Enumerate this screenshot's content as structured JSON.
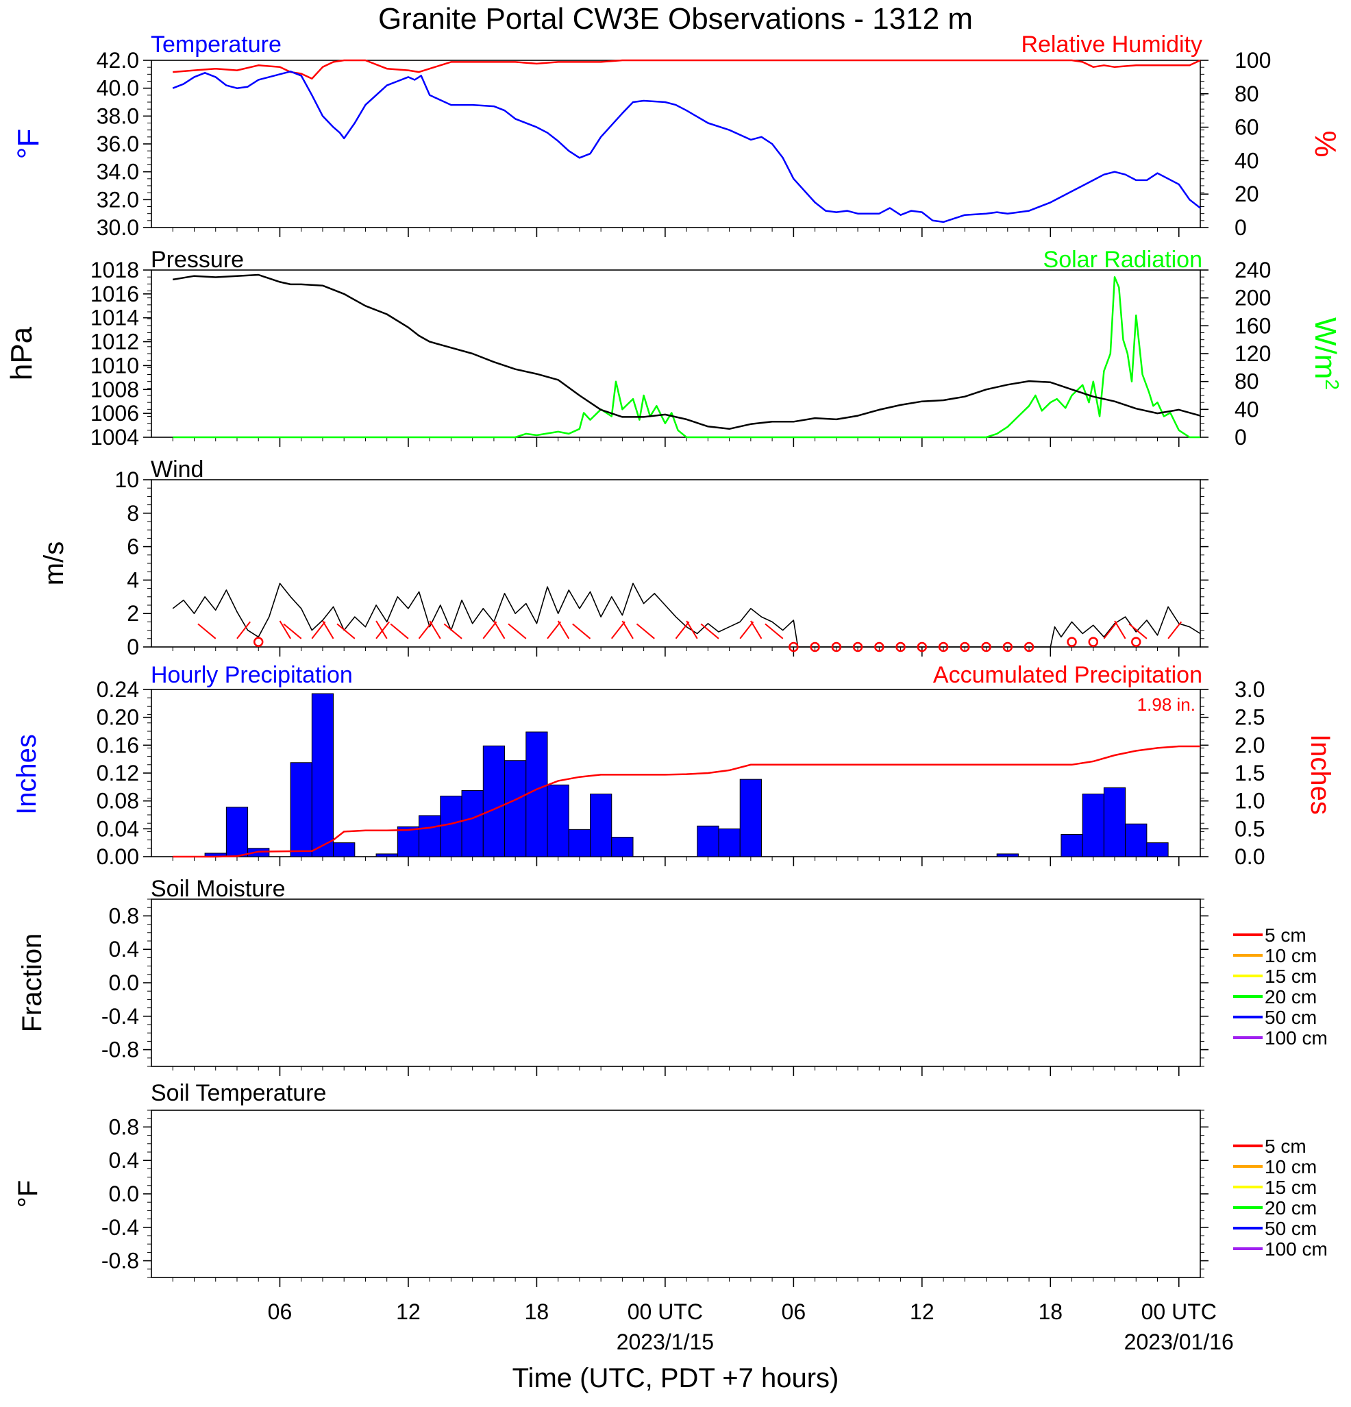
{
  "title": "Granite Portal CW3E Observations - 1312 m",
  "x_axis": {
    "label": "Time (UTC, PDT +7 hours)",
    "ticks": [
      {
        "hour": 5,
        "label": "06"
      },
      {
        "hour": 11,
        "label": "12"
      },
      {
        "hour": 17,
        "label": "18"
      },
      {
        "hour": 23,
        "label": "00 UTC",
        "date": "2023/1/15"
      },
      {
        "hour": 29,
        "label": "06"
      },
      {
        "hour": 35,
        "label": "12"
      },
      {
        "hour": 41,
        "label": "18"
      },
      {
        "hour": 47,
        "label": "00 UTC",
        "date": "2023/01/16"
      }
    ]
  },
  "colors": {
    "temperature": "#0000ff",
    "humidity": "#ff0000",
    "pressure": "#000000",
    "solar": "#00ff00",
    "wind": "#000000",
    "barb": "#ff0000",
    "precip_bar": "#0000ff",
    "accum": "#ff0000"
  },
  "chart_data": [
    {
      "id": "temp",
      "type": "line",
      "title_left": "Temperature",
      "title_right": "Relative Humidity",
      "ylabel_left": "°F",
      "ylabel_right": "%",
      "ylim_left": [
        30,
        42
      ],
      "ylim_right": [
        0,
        100
      ],
      "yticks_left": [
        "30.0",
        "32.0",
        "34.0",
        "36.0",
        "38.0",
        "40.0",
        "42.0"
      ],
      "yticks_right": [
        "0",
        "20",
        "40",
        "60",
        "80",
        "100"
      ],
      "series": [
        {
          "name": "Temperature",
          "axis": "left",
          "color_key": "temperature",
          "x": [
            0,
            0.5,
            1,
            1.5,
            2,
            2.5,
            3,
            3.5,
            4,
            4.5,
            5,
            5.5,
            6,
            6.5,
            7,
            7.5,
            7.8,
            8,
            8.5,
            9,
            9.5,
            10,
            10.5,
            11,
            11.3,
            11.6,
            12,
            13,
            14,
            15,
            15.5,
            16,
            17,
            17.5,
            18,
            18.5,
            19,
            19.5,
            20,
            21,
            21.5,
            22,
            23,
            23.5,
            24,
            25,
            26,
            27,
            27.5,
            28,
            28.5,
            29,
            30,
            30.5,
            31,
            31.5,
            32,
            33,
            33.5,
            34,
            34.5,
            35,
            35.5,
            36,
            37,
            38,
            38.5,
            39,
            40,
            41,
            42,
            42.5,
            43,
            43.5,
            44,
            44.5,
            45,
            45.5,
            46,
            46.5,
            47,
            47.5,
            48
          ],
          "y": [
            40.0,
            40.3,
            40.8,
            41.1,
            40.8,
            40.2,
            40.0,
            40.1,
            40.6,
            40.8,
            41.0,
            41.2,
            40.9,
            39.5,
            38.0,
            37.2,
            36.8,
            36.4,
            37.5,
            38.8,
            39.5,
            40.2,
            40.5,
            40.8,
            40.6,
            40.9,
            39.5,
            38.8,
            38.8,
            38.7,
            38.4,
            37.8,
            37.2,
            36.8,
            36.2,
            35.5,
            35.0,
            35.3,
            36.5,
            38.2,
            39.0,
            39.1,
            39.0,
            38.8,
            38.4,
            37.5,
            37.0,
            36.3,
            36.5,
            36.0,
            35.0,
            33.5,
            31.8,
            31.2,
            31.1,
            31.2,
            31.0,
            31.0,
            31.4,
            30.9,
            31.2,
            31.1,
            30.5,
            30.4,
            30.9,
            31.0,
            31.1,
            31.0,
            31.2,
            31.8,
            32.6,
            33.0,
            33.4,
            33.8,
            34.0,
            33.8,
            33.4,
            33.4,
            33.9,
            33.5,
            33.1,
            32.0,
            31.4
          ]
        },
        {
          "name": "Relative Humidity",
          "axis": "right",
          "color_key": "humidity",
          "x": [
            0,
            1,
            2,
            3,
            4,
            5,
            5.5,
            6,
            6.5,
            7,
            7.5,
            8,
            9,
            10,
            11,
            11.5,
            12,
            12.5,
            13,
            14,
            15,
            16,
            17,
            18,
            19,
            20,
            21,
            22,
            23,
            24,
            25,
            26,
            27,
            28,
            30,
            32,
            34,
            36,
            38,
            40,
            41,
            42,
            42.5,
            43,
            43.5,
            44,
            45,
            46,
            47,
            47.5,
            48
          ],
          "y": [
            93,
            94,
            95,
            94,
            97,
            96,
            93,
            92,
            89,
            96,
            99,
            100,
            100,
            95,
            94,
            93,
            95,
            97,
            99,
            99,
            99,
            99,
            98,
            99,
            99,
            99,
            100,
            100,
            100,
            100,
            100,
            100,
            100,
            100,
            100,
            100,
            100,
            100,
            100,
            100,
            100,
            100,
            99,
            96,
            97,
            96,
            97,
            97,
            97,
            97,
            100
          ]
        }
      ]
    },
    {
      "id": "pressure",
      "type": "line",
      "title_left": "Pressure",
      "title_right": "Solar Radiation",
      "ylabel_left": "hPa",
      "ylabel_right": "W/m2",
      "ylim_left": [
        1004,
        1018
      ],
      "ylim_right": [
        0,
        240
      ],
      "yticks_left": [
        "1004",
        "1006",
        "1008",
        "1010",
        "1012",
        "1014",
        "1016",
        "1018"
      ],
      "yticks_right": [
        "0",
        "40",
        "80",
        "120",
        "160",
        "200",
        "240"
      ],
      "series": [
        {
          "name": "Pressure",
          "axis": "left",
          "color_key": "pressure",
          "x": [
            0,
            1,
            2,
            3,
            4,
            4.5,
            5,
            5.5,
            6,
            7,
            8,
            9,
            10,
            11,
            11.5,
            12,
            13,
            14,
            15,
            16,
            17,
            18,
            19,
            20,
            21,
            22,
            23,
            24,
            25,
            26,
            27,
            28,
            29,
            30,
            31,
            32,
            33,
            34,
            35,
            36,
            37,
            38,
            39,
            40,
            41,
            42,
            43,
            44,
            45,
            46,
            47,
            48
          ],
          "y": [
            1017.2,
            1017.5,
            1017.4,
            1017.5,
            1017.6,
            1017.3,
            1017.0,
            1016.8,
            1016.8,
            1016.7,
            1016.0,
            1015.0,
            1014.3,
            1013.2,
            1012.5,
            1012.0,
            1011.5,
            1011.0,
            1010.3,
            1009.7,
            1009.3,
            1008.8,
            1007.5,
            1006.3,
            1005.7,
            1005.7,
            1005.9,
            1005.5,
            1004.9,
            1004.7,
            1005.1,
            1005.3,
            1005.3,
            1005.6,
            1005.5,
            1005.8,
            1006.3,
            1006.7,
            1007.0,
            1007.1,
            1007.4,
            1008.0,
            1008.4,
            1008.7,
            1008.6,
            1008.0,
            1007.4,
            1007.0,
            1006.4,
            1006.0,
            1006.3,
            1005.8
          ]
        },
        {
          "name": "Solar Radiation",
          "axis": "right",
          "color_key": "solar",
          "x": [
            0,
            16,
            16.5,
            17,
            18,
            18.5,
            19,
            19.2,
            19.5,
            20,
            20.5,
            20.7,
            21,
            21.5,
            21.8,
            22,
            22.3,
            22.6,
            23,
            23.3,
            23.6,
            24,
            26,
            38,
            38.5,
            39,
            39.5,
            40,
            40.3,
            40.6,
            41,
            41.3,
            41.7,
            42,
            42.5,
            42.8,
            43,
            43.3,
            43.5,
            43.8,
            44,
            44.2,
            44.4,
            44.6,
            44.8,
            45,
            45.3,
            45.6,
            45.8,
            46,
            46.3,
            46.6,
            47,
            47.5,
            48
          ],
          "y": [
            0,
            0,
            5,
            3,
            8,
            5,
            12,
            35,
            25,
            40,
            30,
            80,
            40,
            55,
            25,
            60,
            30,
            45,
            20,
            35,
            10,
            0,
            0,
            0,
            5,
            15,
            30,
            45,
            60,
            38,
            50,
            55,
            42,
            60,
            75,
            50,
            80,
            30,
            95,
            120,
            230,
            215,
            140,
            120,
            80,
            175,
            90,
            65,
            45,
            50,
            30,
            35,
            10,
            0,
            0
          ]
        }
      ]
    },
    {
      "id": "wind",
      "type": "line",
      "title_left": "Wind",
      "ylabel_left": "m/s",
      "ylim_left": [
        0,
        10
      ],
      "yticks_left": [
        "0",
        "2",
        "4",
        "6",
        "8",
        "10"
      ],
      "series": [
        {
          "name": "Wind",
          "axis": "left",
          "color_key": "wind",
          "x": [
            0,
            0.5,
            1,
            1.5,
            2,
            2.5,
            3,
            3.5,
            4,
            4.5,
            5,
            5.5,
            6,
            6.5,
            7,
            7.5,
            8,
            8.5,
            9,
            9.5,
            10,
            10.5,
            11,
            11.5,
            12,
            12.5,
            13,
            13.5,
            14,
            14.5,
            15,
            15.5,
            16,
            16.5,
            17,
            17.5,
            18,
            18.5,
            19,
            19.5,
            20,
            20.5,
            21,
            21.5,
            22,
            22.5,
            23,
            23.5,
            24,
            24.5,
            25,
            25.5,
            26,
            26.5,
            27,
            27.5,
            28,
            28.5,
            29,
            29.2,
            41,
            41.2,
            41.5,
            42,
            42.5,
            43,
            43.5,
            44,
            44.5,
            45,
            45.5,
            46,
            46.5,
            47,
            47.5,
            48
          ],
          "y": [
            2.3,
            2.8,
            2.0,
            3.0,
            2.2,
            3.4,
            2.1,
            1.0,
            0.6,
            1.8,
            3.8,
            3.0,
            2.3,
            1.0,
            1.6,
            2.4,
            1.0,
            1.8,
            1.2,
            2.5,
            1.5,
            3.0,
            2.3,
            3.3,
            1.2,
            2.5,
            1.0,
            2.8,
            1.4,
            2.3,
            1.5,
            3.2,
            2.0,
            2.6,
            1.4,
            3.6,
            2.0,
            3.4,
            2.3,
            3.3,
            1.8,
            3.0,
            1.9,
            3.8,
            2.6,
            3.2,
            2.5,
            1.8,
            1.2,
            0.8,
            1.4,
            0.9,
            1.2,
            1.5,
            2.3,
            1.8,
            1.5,
            1.0,
            1.6,
            0.0,
            0.0,
            1.2,
            0.6,
            1.5,
            0.8,
            1.3,
            0.6,
            1.4,
            1.8,
            0.9,
            1.6,
            0.7,
            2.4,
            1.4,
            1.2,
            0.8
          ]
        }
      ],
      "barbs_x": [
        2,
        3,
        5.5,
        6,
        6.5,
        7.5,
        8.5,
        9.5,
        10,
        11,
        11.5,
        12.5,
        13.5,
        14.5,
        15.5,
        16.5,
        17.5,
        18.5,
        19.5,
        20.5,
        21.5,
        22.5,
        23.5,
        24.5,
        25.5,
        26.5,
        27.5,
        28.5,
        43.5,
        44.5,
        45.5,
        46.5
      ],
      "calm_x": [
        4,
        29,
        30,
        31,
        32,
        33,
        34,
        35,
        36,
        37,
        38,
        39,
        40,
        42,
        43,
        45
      ]
    },
    {
      "id": "precip",
      "type": "bar",
      "title_left": "Hourly Precipitation",
      "title_right": "Accumulated Precipitation",
      "total_label": "1.98 in.",
      "ylabel_left": "Inches",
      "ylabel_right": "Inches",
      "ylim_left": [
        0,
        0.24
      ],
      "ylim_right": [
        0,
        3.0
      ],
      "yticks_left": [
        "0.00",
        "0.04",
        "0.08",
        "0.12",
        "0.16",
        "0.20",
        "0.24"
      ],
      "yticks_right": [
        "0.0",
        "0.5",
        "1.0",
        "1.5",
        "2.0",
        "2.5",
        "3.0"
      ],
      "hours": [
        0,
        1,
        2,
        3,
        4,
        5,
        6,
        7,
        8,
        9,
        10,
        11,
        12,
        13,
        14,
        15,
        16,
        17,
        18,
        19,
        20,
        21,
        22,
        23,
        24,
        25,
        26,
        27,
        28,
        29,
        30,
        31,
        32,
        33,
        34,
        35,
        36,
        37,
        38,
        39,
        40,
        41,
        42,
        43,
        44,
        45,
        46,
        47
      ],
      "values": [
        0.0,
        0.0,
        0.005,
        0.071,
        0.012,
        0.0,
        0.135,
        0.234,
        0.02,
        0.0,
        0.004,
        0.043,
        0.059,
        0.087,
        0.095,
        0.159,
        0.138,
        0.179,
        0.103,
        0.039,
        0.09,
        0.028,
        0.0,
        0.0,
        0.0,
        0.044,
        0.04,
        0.111,
        0.0,
        0.0,
        0.0,
        0.0,
        0.0,
        0.0,
        0.0,
        0.0,
        0.0,
        0.0,
        0.0,
        0.004,
        0.0,
        0.0,
        0.032,
        0.09,
        0.099,
        0.047,
        0.02,
        0.0
      ],
      "accumulated": {
        "name": "Accumulated Precipitation",
        "x": [
          0,
          2,
          3,
          4,
          6,
          6.5,
          7,
          7.5,
          8,
          9,
          10,
          11,
          12,
          13,
          14,
          15,
          16,
          17,
          18,
          19,
          20,
          21,
          22,
          23,
          24,
          25,
          26,
          27,
          28,
          30,
          35,
          40,
          42,
          43,
          44,
          45,
          46,
          47,
          48
        ],
        "y": [
          0,
          0,
          0.01,
          0.09,
          0.1,
          0.1,
          0.2,
          0.3,
          0.45,
          0.47,
          0.47,
          0.48,
          0.52,
          0.59,
          0.69,
          0.85,
          1.02,
          1.21,
          1.36,
          1.43,
          1.47,
          1.47,
          1.47,
          1.47,
          1.48,
          1.5,
          1.55,
          1.65,
          1.65,
          1.65,
          1.65,
          1.65,
          1.65,
          1.71,
          1.82,
          1.9,
          1.95,
          1.98,
          1.98
        ]
      }
    },
    {
      "id": "soil_moisture",
      "type": "line",
      "title_left": "Soil Moisture",
      "ylabel_left": "Fraction",
      "ylim_left": [
        -1.0,
        1.0
      ],
      "yticks_left": [
        "-0.8",
        "-0.4",
        "0.0",
        "0.4",
        "0.8"
      ],
      "legend": [
        {
          "label": "5 cm",
          "color": "#ff0000"
        },
        {
          "label": "10 cm",
          "color": "#ffa500"
        },
        {
          "label": "15 cm",
          "color": "#ffff00"
        },
        {
          "label": "20 cm",
          "color": "#00ff00"
        },
        {
          "label": "50 cm",
          "color": "#0000ff"
        },
        {
          "label": "100 cm",
          "color": "#a020f0"
        }
      ]
    },
    {
      "id": "soil_temp",
      "type": "line",
      "title_left": "Soil Temperature",
      "ylabel_left": "°F",
      "ylim_left": [
        -1.0,
        1.0
      ],
      "yticks_left": [
        "-0.8",
        "-0.4",
        "0.0",
        "0.4",
        "0.8"
      ],
      "legend": [
        {
          "label": "5 cm",
          "color": "#ff0000"
        },
        {
          "label": "10 cm",
          "color": "#ffa500"
        },
        {
          "label": "15 cm",
          "color": "#ffff00"
        },
        {
          "label": "20 cm",
          "color": "#00ff00"
        },
        {
          "label": "50 cm",
          "color": "#0000ff"
        },
        {
          "label": "100 cm",
          "color": "#a020f0"
        }
      ]
    }
  ]
}
